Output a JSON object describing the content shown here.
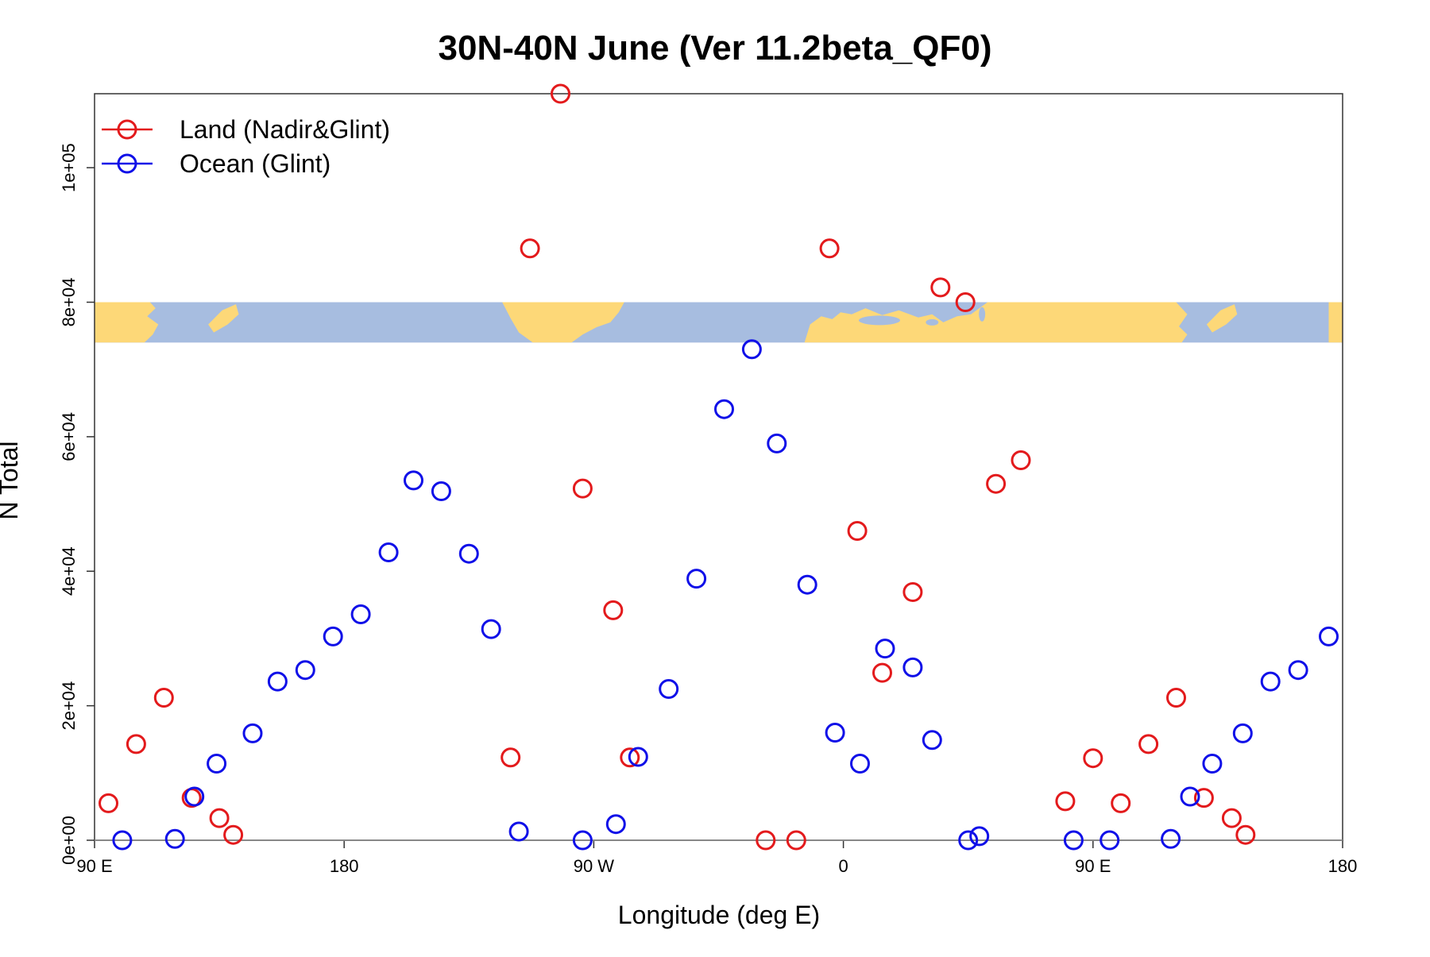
{
  "chart_data": {
    "type": "scatter",
    "title": "30N-40N June (Ver 11.2beta_QF0)",
    "xlabel": "Longitude (deg E)",
    "ylabel": "N Total",
    "xlim": [
      90,
      540
    ],
    "ylim": [
      0,
      111000
    ],
    "x_ticks": [
      {
        "value": 90,
        "label": "90 E"
      },
      {
        "value": 180,
        "label": "180"
      },
      {
        "value": 270,
        "label": "90 W"
      },
      {
        "value": 360,
        "label": "0"
      },
      {
        "value": 450,
        "label": "90 E"
      },
      {
        "value": 540,
        "label": "180"
      }
    ],
    "y_ticks": [
      {
        "value": 0,
        "label": "0e+00"
      },
      {
        "value": 20000,
        "label": "2e+04"
      },
      {
        "value": 40000,
        "label": "4e+04"
      },
      {
        "value": 60000,
        "label": "6e+04"
      },
      {
        "value": 80000,
        "label": "8e+04"
      },
      {
        "value": 100000,
        "label": "1e+05"
      }
    ],
    "legend_position": "top-left",
    "grid": false,
    "map_strip": {
      "description_colors": {
        "land": "#fdd878",
        "ocean": "#a7bde0"
      },
      "y_range": [
        74000,
        80000
      ],
      "lon_range": [
        90,
        540
      ]
    },
    "series": [
      {
        "name": "Land (Nadir&Glint)",
        "color": "#e31a1c",
        "points": [
          [
            95,
            5500
          ],
          [
            105,
            14300
          ],
          [
            115,
            21200
          ],
          [
            125,
            6300
          ],
          [
            135,
            3300
          ],
          [
            140,
            800
          ],
          [
            240,
            12300
          ],
          [
            247,
            88000
          ],
          [
            258,
            111000
          ],
          [
            266,
            52300
          ],
          [
            277,
            34200
          ],
          [
            283,
            12300
          ],
          [
            332,
            0
          ],
          [
            343,
            0
          ],
          [
            355,
            88000
          ],
          [
            365,
            46000
          ],
          [
            374,
            24900
          ],
          [
            385,
            36900
          ],
          [
            395,
            82200
          ],
          [
            404,
            80000
          ],
          [
            415,
            53000
          ],
          [
            424,
            56500
          ],
          [
            440,
            5800
          ],
          [
            450,
            12200
          ],
          [
            460,
            5500
          ],
          [
            470,
            14300
          ],
          [
            480,
            21200
          ],
          [
            490,
            6300
          ],
          [
            500,
            3300
          ],
          [
            505,
            800
          ]
        ]
      },
      {
        "name": "Ocean (Glint)",
        "color": "#1010e8",
        "points": [
          [
            100,
            0
          ],
          [
            119,
            200
          ],
          [
            126,
            6500
          ],
          [
            134,
            11400
          ],
          [
            147,
            15900
          ],
          [
            156,
            23600
          ],
          [
            166,
            25300
          ],
          [
            176,
            30300
          ],
          [
            186,
            33600
          ],
          [
            196,
            42800
          ],
          [
            205,
            53500
          ],
          [
            215,
            51900
          ],
          [
            225,
            42600
          ],
          [
            233,
            31400
          ],
          [
            243,
            1300
          ],
          [
            266,
            0
          ],
          [
            278,
            2400
          ],
          [
            286,
            12400
          ],
          [
            297,
            22500
          ],
          [
            307,
            38900
          ],
          [
            317,
            64100
          ],
          [
            327,
            73000
          ],
          [
            336,
            59000
          ],
          [
            347,
            38000
          ],
          [
            357,
            16000
          ],
          [
            366,
            11400
          ],
          [
            375,
            28500
          ],
          [
            385,
            25700
          ],
          [
            392,
            14900
          ],
          [
            405,
            0
          ],
          [
            409,
            600
          ],
          [
            443,
            0
          ],
          [
            456,
            0
          ],
          [
            478,
            200
          ],
          [
            485,
            6500
          ],
          [
            493,
            11400
          ],
          [
            504,
            15900
          ],
          [
            514,
            23600
          ],
          [
            524,
            25300
          ],
          [
            535,
            30300
          ]
        ]
      }
    ]
  }
}
